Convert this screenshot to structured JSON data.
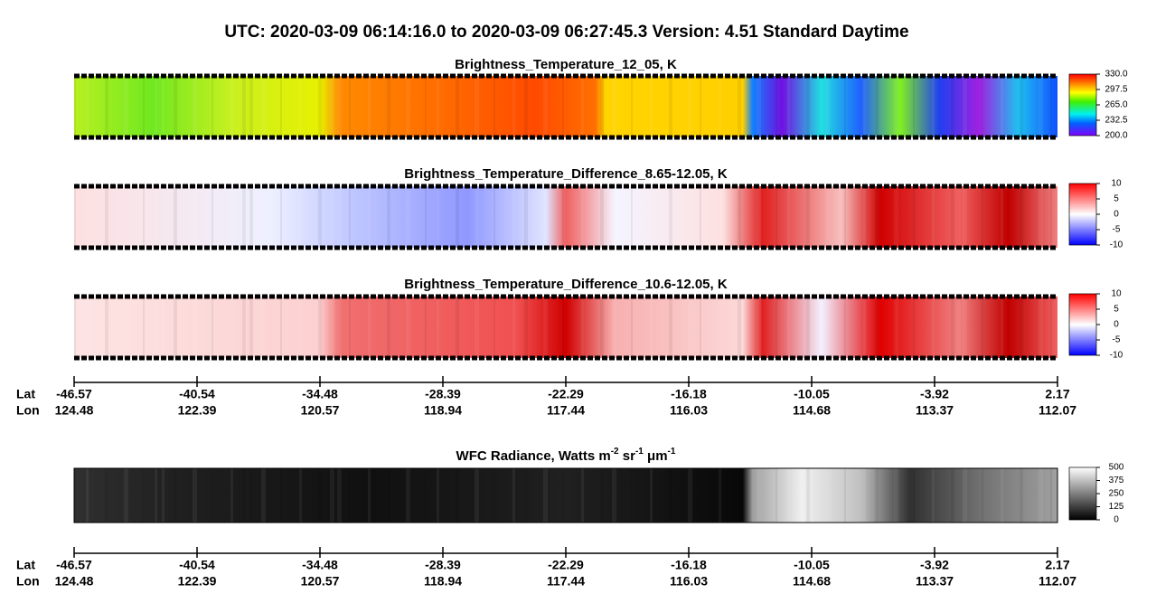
{
  "title": "UTC:  2020-03-09   06:14:16.0  to  2020-03-09   06:27:45.3    Version: 4.51  Standard Daytime",
  "panels": [
    {
      "title": "Brightness_Temperature_12_05, K",
      "colorbar": {
        "lim": [
          200,
          330
        ],
        "ticks": [
          {
            "value": 330,
            "label": "330.0"
          },
          {
            "value": 297.5,
            "label": "297.5"
          },
          {
            "value": 265,
            "label": "265.0"
          },
          {
            "value": 232.5,
            "label": "232.5"
          },
          {
            "value": 200,
            "label": "200.0"
          }
        ]
      }
    },
    {
      "title": "Brightness_Temperature_Difference_8.65-12.05, K",
      "colorbar": {
        "lim": [
          -10,
          10
        ],
        "ticks": [
          10,
          5,
          0,
          -5,
          -10
        ]
      }
    },
    {
      "title": "Brightness_Temperature_Difference_10.6-12.05, K",
      "colorbar": {
        "lim": [
          -10,
          10
        ],
        "ticks": [
          10,
          5,
          0,
          -5,
          -10
        ]
      }
    },
    {
      "title_parts": [
        {
          "text": "WFC Radiance, Watts m"
        },
        {
          "sup": "-2"
        },
        {
          "text": " sr"
        },
        {
          "sup": "-1"
        },
        {
          "text": " μm"
        },
        {
          "sup": "-1"
        }
      ],
      "colorbar": {
        "lim": [
          0,
          500
        ],
        "ticks": [
          500,
          375,
          250,
          125,
          0
        ]
      }
    }
  ],
  "axes": [
    {
      "lat_label": "Lat",
      "lon_label": "Lon",
      "lat": [
        -46.57,
        -40.54,
        -34.48,
        -28.39,
        -22.29,
        -16.18,
        -10.05,
        -3.92,
        2.17
      ],
      "lon": [
        124.48,
        122.39,
        120.57,
        118.94,
        117.44,
        116.03,
        114.68,
        113.37,
        112.07
      ]
    },
    {
      "lat_label": "Lat",
      "lon_label": "Lon",
      "lat": [
        -46.57,
        -40.54,
        -34.48,
        -28.39,
        -22.29,
        -16.18,
        -10.05,
        -3.92,
        2.17
      ],
      "lon": [
        124.48,
        122.39,
        120.57,
        118.94,
        117.44,
        116.03,
        114.68,
        113.37,
        112.07
      ]
    }
  ]
}
